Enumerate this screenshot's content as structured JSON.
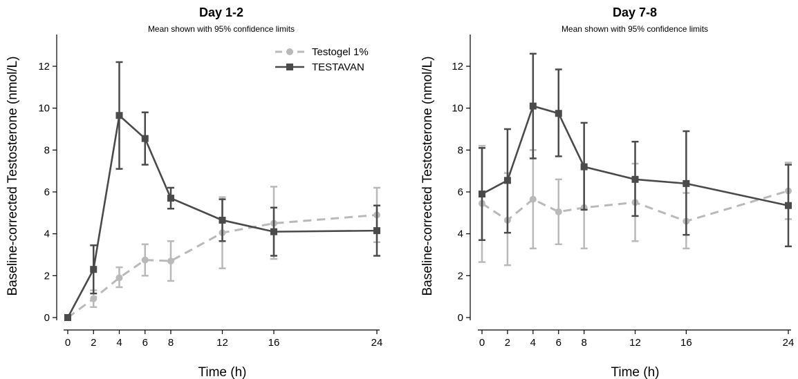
{
  "colors": {
    "testogel": "#b9b9b9",
    "testavan": "#4a4a4a",
    "axis": "#000000"
  },
  "chart_data": [
    {
      "type": "line",
      "title": "Day 1-2",
      "subtitle": "Mean shown with 95% confidence limits",
      "xlabel": "Time (h)",
      "ylabel": "Baseline-corrected Testosterone (nmol/L)",
      "xticks": [
        0,
        2,
        4,
        6,
        8,
        12,
        16,
        24
      ],
      "yticks": [
        0,
        2,
        4,
        6,
        8,
        10,
        12
      ],
      "xlim": [
        0,
        24
      ],
      "ylim": [
        0,
        13.5
      ],
      "grid": false,
      "legend": "top-right",
      "series": [
        {
          "name": "Testogel 1%",
          "style": "dashed",
          "marker": "circle",
          "color": "#b9b9b9",
          "x": [
            0,
            2,
            4,
            6,
            8,
            12,
            16,
            24
          ],
          "y": [
            0,
            0.9,
            1.9,
            2.75,
            2.7,
            4.05,
            4.5,
            4.9
          ],
          "lower": [
            0,
            0.5,
            1.45,
            2.0,
            1.75,
            2.35,
            2.8,
            3.6
          ],
          "upper": [
            0,
            1.3,
            2.4,
            3.5,
            3.65,
            5.75,
            6.25,
            6.2
          ]
        },
        {
          "name": "TESTAVAN",
          "style": "solid",
          "marker": "square",
          "color": "#4a4a4a",
          "x": [
            0,
            2,
            4,
            6,
            8,
            12,
            16,
            24
          ],
          "y": [
            0,
            2.3,
            9.65,
            8.55,
            5.7,
            4.65,
            4.1,
            4.15
          ],
          "lower": [
            0,
            1.15,
            7.1,
            7.3,
            5.2,
            3.65,
            2.95,
            2.95
          ],
          "upper": [
            0,
            3.45,
            12.2,
            9.8,
            6.2,
            5.65,
            5.25,
            5.35
          ]
        }
      ]
    },
    {
      "type": "line",
      "title": "Day 7-8",
      "subtitle": "Mean shown with 95% confidence limits",
      "xlabel": "Time (h)",
      "ylabel": "Baseline-corrected Testosterone (nmol/L)",
      "xticks": [
        0,
        2,
        4,
        6,
        8,
        12,
        16,
        24
      ],
      "yticks": [
        0,
        2,
        4,
        6,
        8,
        10,
        12
      ],
      "xlim": [
        0,
        24
      ],
      "ylim": [
        0,
        13.5
      ],
      "grid": false,
      "series": [
        {
          "name": "Testogel 1%",
          "style": "dashed",
          "marker": "circle",
          "color": "#b9b9b9",
          "x": [
            0,
            2,
            4,
            6,
            8,
            12,
            16,
            24
          ],
          "y": [
            5.45,
            4.65,
            5.65,
            5.05,
            5.25,
            5.5,
            4.6,
            6.05
          ],
          "lower": [
            2.65,
            2.5,
            3.3,
            3.5,
            3.3,
            3.65,
            3.3,
            4.7
          ],
          "upper": [
            8.2,
            6.9,
            8.0,
            6.6,
            7.2,
            7.35,
            5.95,
            7.4
          ]
        },
        {
          "name": "TESTAVAN",
          "style": "solid",
          "marker": "square",
          "color": "#4a4a4a",
          "x": [
            0,
            2,
            4,
            6,
            8,
            12,
            16,
            24
          ],
          "y": [
            5.9,
            6.55,
            10.1,
            9.75,
            7.2,
            6.6,
            6.4,
            5.35
          ],
          "lower": [
            3.7,
            4.05,
            7.6,
            7.7,
            5.15,
            4.85,
            3.95,
            3.4
          ],
          "upper": [
            8.1,
            9.0,
            12.6,
            11.85,
            9.3,
            8.4,
            8.9,
            7.3
          ]
        }
      ]
    }
  ]
}
